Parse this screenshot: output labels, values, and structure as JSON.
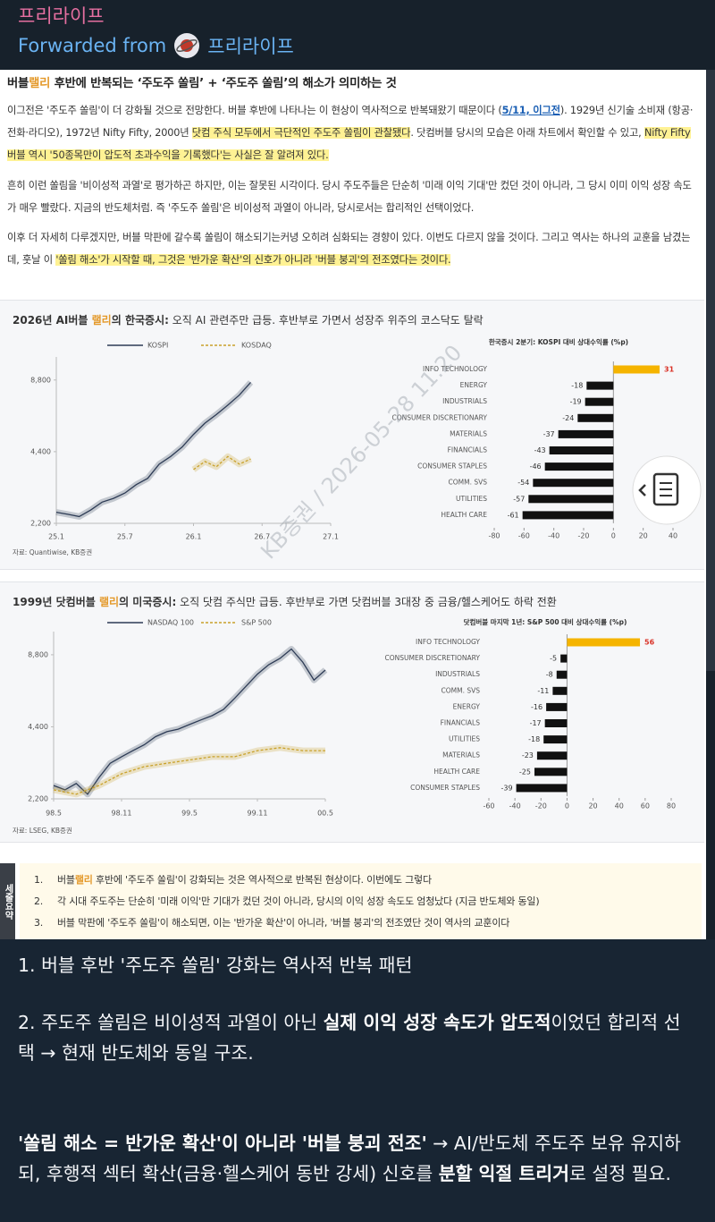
{
  "header": {
    "channel": "프리라이프",
    "forwarded_label": "Forwarded from",
    "forwarded_channel": "프리라이프"
  },
  "document": {
    "title": [
      {
        "text": "버블",
        "style": "bold"
      },
      {
        "text": "랠리",
        "style": "accent"
      },
      {
        "text": " 후반에 반복되는 ‘주도주 쏠림’ + ‘주도주 쏠림’의 해소가 의미하는 것",
        "style": "bold"
      }
    ],
    "paragraphs": [
      [
        {
          "text": "이그전은 '주도주 쏠림'이 더 강화될 것으로 전망한다. 버블 후반에 나타나는 이 현상이 역사적으로 반복돼왔기 때문이다 ("
        },
        {
          "text": "5/11, 이그전",
          "style": "link"
        },
        {
          "text": "). 1929년 신기술 소비재 (항공·전화·라디오), 1972년 Nifty Fifty, 2000년 "
        },
        {
          "text": "닷컴 주식 모두에서 극단적인 주도주 쏠림이 관찰됐다",
          "style": "highlight"
        },
        {
          "text": ". 닷컴버블 당시의 모습은 아래 차트에서 확인할 수 있고, "
        },
        {
          "text": "Nifty Fifty 버블 역시 '50종목만이 압도적 초과수익을 기록했다'는 사실은 잘 알려져 있다.",
          "style": "highlight"
        }
      ],
      [
        {
          "text": "흔히 이런 쏠림을 '비이성적 과열'로 평가하곤 하지만, 이는 잘못된 시각이다. 당시 주도주들은 단순히 '미래 이익 기대'만 컸던 것이 아니라, 그 당시 이미 이익 성장 속도가 매우 빨랐다. 지금의 반도체처럼. 즉 '주도주 쏠림'은 비이성적 과열이 아니라, 당시로서는 합리적인 선택이었다."
        }
      ],
      [
        {
          "text": "이후 더 자세히 다루겠지만, 버블 막판에 갈수록 쏠림이 해소되기는커녕 오히려 심화되는 경향이 있다. 이번도 다르지 않을 것이다. 그리고 역사는 하나의 교훈을 남겼는데, 훗날 이 "
        },
        {
          "text": "'쏠림 해소'가 시작할 때, 그것은 '반가운 확산'의 신호가 아니라 '버블 붕괴'의 전조였다는 것이다.",
          "style": "highlight"
        }
      ]
    ],
    "watermark": "KB증권 / 2026-05-28 11:20",
    "charts": [
      {
        "title": [
          {
            "text": "2026년 AI버블 ",
            "style": "bold"
          },
          {
            "text": "랠리",
            "style": "accent"
          },
          {
            "text": "의 한국증시:",
            "style": "bold"
          },
          {
            "text": " 오직 AI 관련주만 급등. 후반부로 가면서 성장주 위주의 코스닥도 탈락"
          }
        ],
        "line": {
          "type": "line",
          "log_scale": true,
          "grid": false,
          "series": [
            {
              "name": "KOSPI",
              "color": "#2d3b55",
              "dashed": false,
              "x": [
                0,
                1,
                2,
                3,
                4,
                5,
                6,
                7,
                8,
                9,
                10,
                11,
                12,
                13,
                14,
                15,
                16,
                17
              ],
              "values": [
                2450,
                2400,
                2350,
                2500,
                2700,
                2800,
                2950,
                3200,
                3400,
                3900,
                4200,
                4600,
                5200,
                5800,
                6300,
                6900,
                7600,
                8600
              ]
            },
            {
              "name": "KOSDAQ",
              "color": "#c9a12a",
              "dashed": true,
              "x": [
                12,
                13,
                14,
                15,
                16,
                17
              ],
              "values": [
                3700,
                4000,
                3800,
                4200,
                3900,
                4100
              ]
            }
          ],
          "xlim": [
            0,
            24
          ],
          "xticks": [
            {
              "value": 0,
              "label": "25.1"
            },
            {
              "value": 6,
              "label": "25.7"
            },
            {
              "value": 12,
              "label": "26.1"
            },
            {
              "value": 18,
              "label": "26.7"
            },
            {
              "value": 24,
              "label": "27.1"
            }
          ],
          "ylim": [
            2200,
            11000
          ],
          "yticks": [
            {
              "value": 2200,
              "label": "2,200"
            },
            {
              "value": 4400,
              "label": "4,400"
            },
            {
              "value": 8800,
              "label": "8,800"
            }
          ]
        },
        "bars": {
          "type": "bar",
          "title": "한국증시 2분기: KOSPI 대비 상대수익률 (%p)",
          "categories": [
            "INFO TECHNOLOGY",
            "ENERGY",
            "INDUSTRIALS",
            "CONSUMER DISCRETIONARY",
            "MATERIALS",
            "FINANCIALS",
            "CONSUMER STAPLES",
            "COMM. SVS",
            "UTILITIES",
            "HEALTH CARE"
          ],
          "values": [
            31,
            -18,
            -19,
            -24,
            -37,
            -43,
            -46,
            -54,
            -57,
            -61
          ],
          "xlim": [
            -80,
            40
          ],
          "xticks": [
            -80,
            -60,
            -40,
            -20,
            0,
            20,
            40
          ],
          "positive_color": "#f5b400",
          "negative_color": "#111111",
          "positive_label_color": "#d93025"
        },
        "source": "자료: Quantiwise, KB증권"
      },
      {
        "title": [
          {
            "text": "1999년 닷컴버블 ",
            "style": "bold"
          },
          {
            "text": "랠리",
            "style": "accent"
          },
          {
            "text": "의 미국증시:",
            "style": "bold"
          },
          {
            "text": " 오직 닷컴 주식만 급등. 후반부로 가면 닷컴버블 3대장 중 금융/헬스케어도 하락 전환"
          }
        ],
        "line": {
          "type": "line",
          "log_scale": true,
          "grid": false,
          "series": [
            {
              "name": "NASDAQ 100",
              "color": "#2d3b55",
              "dashed": false,
              "x": [
                0,
                1,
                2,
                3,
                4,
                5,
                6,
                7,
                8,
                9,
                10,
                11,
                12,
                13,
                14,
                15,
                16,
                17,
                18,
                19,
                20,
                21,
                22,
                23,
                24
              ],
              "values": [
                2500,
                2400,
                2550,
                2300,
                2700,
                3100,
                3300,
                3500,
                3700,
                4000,
                4200,
                4300,
                4500,
                4700,
                4900,
                5200,
                5800,
                6500,
                7300,
                8000,
                8500,
                9300,
                8200,
                6900,
                7600
              ]
            },
            {
              "name": "S&P 500",
              "color": "#c9a12a",
              "dashed": true,
              "x": [
                0,
                2,
                4,
                6,
                8,
                10,
                12,
                14,
                16,
                18,
                20,
                22,
                24
              ],
              "values": [
                2400,
                2300,
                2500,
                2800,
                3000,
                3100,
                3200,
                3300,
                3300,
                3500,
                3600,
                3500,
                3500
              ]
            }
          ],
          "xlim": [
            0,
            24
          ],
          "xticks": [
            {
              "value": 0,
              "label": "98.5"
            },
            {
              "value": 6,
              "label": "98.11"
            },
            {
              "value": 12,
              "label": "99.5"
            },
            {
              "value": 18,
              "label": "99.11"
            },
            {
              "value": 24,
              "label": "00.5"
            }
          ],
          "ylim": [
            2200,
            11000
          ],
          "yticks": [
            {
              "value": 2200,
              "label": "2,200"
            },
            {
              "value": 4400,
              "label": "4,400"
            },
            {
              "value": 8800,
              "label": "8,800"
            }
          ]
        },
        "bars": {
          "type": "bar",
          "title": "닷컴버블 마지막 1년: S&P 500 대비 상대수익률 (%p)",
          "categories": [
            "INFO TECHNOLOGY",
            "CONSUMER DISCRETIONARY",
            "INDUSTRIALS",
            "COMM. SVS",
            "ENERGY",
            "FINANCIALS",
            "UTILITIES",
            "MATERIALS",
            "HEALTH CARE",
            "CONSUMER STAPLES"
          ],
          "values": [
            56,
            -5,
            -8,
            -11,
            -16,
            -17,
            -18,
            -23,
            -25,
            -39
          ],
          "xlim": [
            -60,
            80
          ],
          "xticks": [
            -60,
            -40,
            -20,
            0,
            20,
            40,
            60,
            80
          ],
          "positive_color": "#f5b400",
          "negative_color": "#111111",
          "positive_label_color": "#d93025"
        },
        "source": "자료: LSEG, KB증권"
      }
    ],
    "summary": {
      "label": "세줄요약",
      "items": [
        {
          "number": "1.",
          "segments": [
            {
              "text": "버블"
            },
            {
              "text": "랠리",
              "style": "accent"
            },
            {
              "text": " 후반에 '주도주 쏠림'이 강화되는 것은 역사적으로 반복된 현상이다. 이번에도 그렇다"
            }
          ]
        },
        {
          "number": "2.",
          "segments": [
            {
              "text": "각 시대 주도주는 단순히 '미래 이익'만 기대가 컸던 것이 아니라, 당시의 이익 성장 속도도 엄청났다 (지금 반도체와 동일)"
            }
          ]
        },
        {
          "number": "3.",
          "segments": [
            {
              "text": "버블 막판에 '주도주 쏠림'이 해소되면, 이는 '반가운 확산'이 아니라, '버블 붕괴'의 전조였단 것이 역사의 교훈이다"
            }
          ]
        }
      ]
    }
  },
  "message": {
    "paragraphs": [
      [
        {
          "text": "1. 버블 후반 '주도주 쏠림' 강화는 역사적 반복 패턴"
        }
      ],
      [
        {
          "text": "2. 주도주 쏠림은 비이성적 과열이 아닌 "
        },
        {
          "text": "실제 이익 성장 속도가 압도적",
          "style": "bold"
        },
        {
          "text": "이었던 합리적 선택 → 현재 반도체와 동일 구조."
        }
      ],
      [
        {
          "text": " '쏠림 해소 = 반가운 확산'이 아니라 '버블 붕괴 전조'",
          "style": "bold"
        },
        {
          "text": " → AI/반도체 주도주 보유 유지하되, 후행적 섹터 확산(금융·헬스케어 동반 강세) 신호를 "
        },
        {
          "text": "분할 익절 트리거",
          "style": "bold"
        },
        {
          "text": "로 설정 필요."
        }
      ]
    ]
  }
}
